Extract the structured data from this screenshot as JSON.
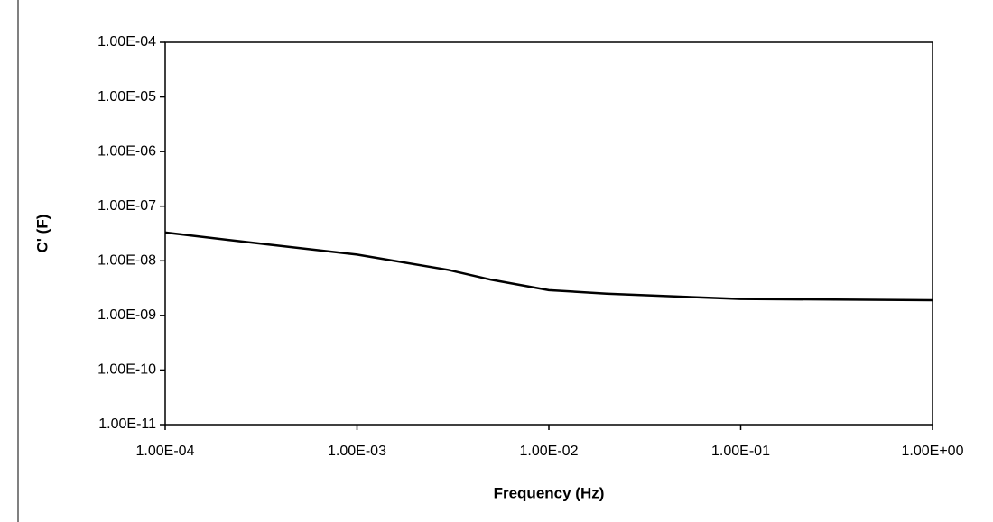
{
  "chart_data": {
    "type": "line",
    "xlabel": "Frequency (Hz)",
    "ylabel": "C' (F)",
    "logx": true,
    "logy": true,
    "grid": false,
    "xlim": [
      0.0001,
      1
    ],
    "ylim": [
      1e-11,
      0.0001
    ],
    "xticks": [
      {
        "value": 0.0001,
        "label": "1.00E-04"
      },
      {
        "value": 0.001,
        "label": "1.00E-03"
      },
      {
        "value": 0.01,
        "label": "1.00E-02"
      },
      {
        "value": 0.1,
        "label": "1.00E-01"
      },
      {
        "value": 1,
        "label": "1.00E+00"
      }
    ],
    "yticks": [
      {
        "value": 1e-11,
        "label": "1.00E-11"
      },
      {
        "value": 1e-10,
        "label": "1.00E-10"
      },
      {
        "value": 1e-09,
        "label": "1.00E-09"
      },
      {
        "value": 1e-08,
        "label": "1.00E-08"
      },
      {
        "value": 1e-07,
        "label": "1.00E-07"
      },
      {
        "value": 1e-06,
        "label": "1.00E-06"
      },
      {
        "value": 1e-05,
        "label": "1.00E-05"
      },
      {
        "value": 0.0001,
        "label": "1.00E-04"
      }
    ],
    "series": [
      {
        "name": "C'",
        "color": "#000000",
        "x": [
          0.0001,
          0.0003,
          0.001,
          0.003,
          0.005,
          0.01,
          0.02,
          0.05,
          0.1,
          1
        ],
        "values": [
          3.3e-08,
          2.1e-08,
          1.3e-08,
          6.8e-09,
          4.5e-09,
          2.9e-09,
          2.5e-09,
          2.2e-09,
          2e-09,
          1.9e-09
        ]
      }
    ]
  }
}
